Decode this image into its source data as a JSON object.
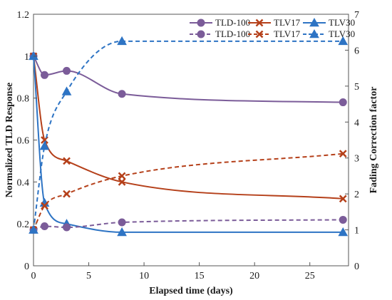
{
  "chart_data": {
    "type": "line",
    "title": "",
    "xlabel": "Elapsed time (days)",
    "ylabel_left": "Normalized TLD Response",
    "ylabel_right": "Fading Correction factor",
    "xlim": [
      0,
      28.5
    ],
    "ylim_left": [
      0,
      1.2
    ],
    "ylim_right": [
      0,
      7
    ],
    "xticks": [
      "0",
      "5",
      "10",
      "15",
      "20",
      "25"
    ],
    "xtick_values": [
      0,
      5,
      10,
      15,
      20,
      25
    ],
    "yticks_left": [
      "0",
      "0.2",
      "0.4",
      "0.6",
      "0.8",
      "1",
      "1.2"
    ],
    "ytick_left_values": [
      0,
      0.2,
      0.4,
      0.6,
      0.8,
      1.0,
      1.2
    ],
    "yticks_right": [
      "0",
      "1",
      "2",
      "3",
      "4",
      "5",
      "6",
      "7"
    ],
    "ytick_right_values": [
      0,
      1,
      2,
      3,
      4,
      5,
      6,
      7
    ],
    "grid": false,
    "legend_position": "top-right",
    "series": [
      {
        "name": "TLD-100",
        "axis": "left",
        "style": "solid",
        "marker": "circle",
        "color": "#7B5C99",
        "x": [
          0,
          1,
          3,
          8,
          28
        ],
        "y": [
          1.0,
          0.91,
          0.93,
          0.82,
          0.78
        ]
      },
      {
        "name": "TLV17",
        "axis": "left",
        "style": "solid",
        "marker": "x",
        "color": "#B5401A",
        "x": [
          0,
          1,
          3,
          8,
          28
        ],
        "y": [
          1.0,
          0.6,
          0.5,
          0.4,
          0.32
        ]
      },
      {
        "name": "TLV30",
        "axis": "left",
        "style": "solid",
        "marker": "triangle",
        "color": "#2E74C4",
        "x": [
          0,
          1,
          3,
          8,
          28
        ],
        "y": [
          1.0,
          0.3,
          0.2,
          0.16,
          0.16
        ]
      },
      {
        "name": "TLD-100",
        "axis": "right",
        "style": "dashed",
        "marker": "circle",
        "color": "#7B5C99",
        "x": [
          0,
          1,
          3,
          8,
          28
        ],
        "y": [
          1.0,
          1.1,
          1.07,
          1.21,
          1.28
        ]
      },
      {
        "name": "TLV17",
        "axis": "right",
        "style": "dashed",
        "marker": "x",
        "color": "#B5401A",
        "x": [
          0,
          1,
          3,
          8,
          28
        ],
        "y": [
          1.0,
          1.67,
          2.0,
          2.5,
          3.12
        ]
      },
      {
        "name": "TLV30",
        "axis": "right",
        "style": "dashed",
        "marker": "triangle",
        "color": "#2E74C4",
        "x": [
          0,
          1,
          3,
          8,
          28
        ],
        "y": [
          1.0,
          3.33,
          4.85,
          6.25,
          6.25
        ]
      }
    ]
  }
}
